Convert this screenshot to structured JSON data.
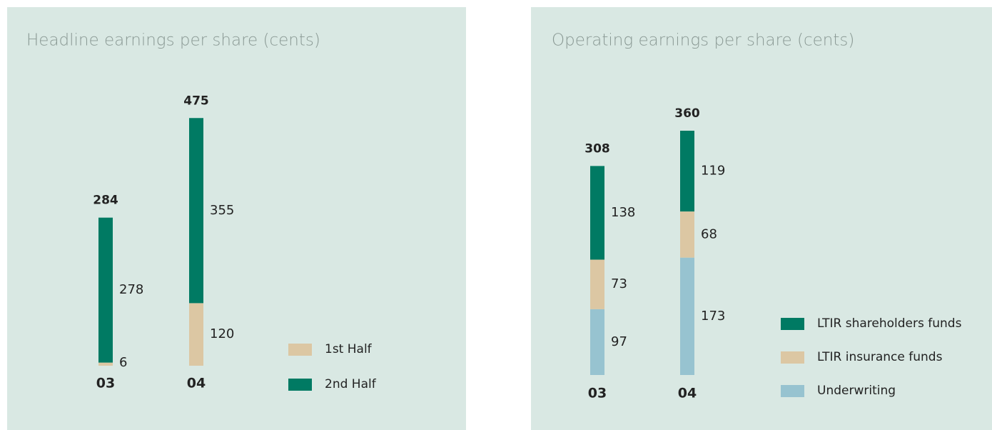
{
  "chart_data": [
    {
      "type": "stacked_bar",
      "title": "Headline earnings per share (cents)",
      "categories": [
        "03",
        "04"
      ],
      "series": [
        {
          "name": "1st Half",
          "color": "#dcc7a3",
          "values": [
            6,
            120
          ]
        },
        {
          "name": "2nd Half",
          "color": "#007a63",
          "values": [
            278,
            355
          ]
        }
      ],
      "totals": [
        284,
        475
      ],
      "legend": "right"
    },
    {
      "type": "stacked_bar",
      "title": "Operating earnings per share (cents)",
      "categories": [
        "03",
        "04"
      ],
      "series": [
        {
          "name": "Underwriting",
          "color": "#97c3d0",
          "values": [
            97,
            173
          ]
        },
        {
          "name": "LTIR insurance funds",
          "color": "#dcc7a3",
          "values": [
            73,
            68
          ]
        },
        {
          "name": "LTIR shareholders funds",
          "color": "#007a63",
          "values": [
            138,
            119
          ]
        }
      ],
      "totals": [
        308,
        360
      ],
      "legend": "right"
    }
  ]
}
